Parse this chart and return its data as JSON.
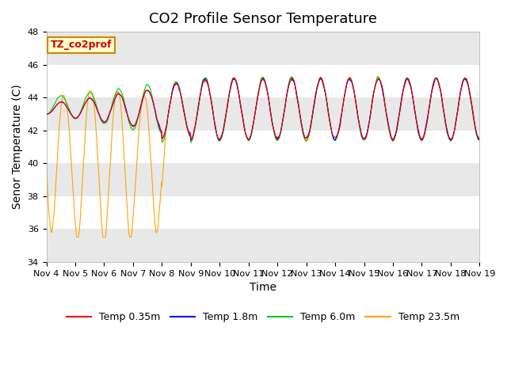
{
  "title": "CO2 Profile Sensor Temperature",
  "xlabel": "Time",
  "ylabel": "Senor Temperature (C)",
  "ylim": [
    34,
    48
  ],
  "yticks": [
    34,
    36,
    38,
    40,
    42,
    44,
    46,
    48
  ],
  "xtick_labels": [
    "Nov 4",
    "Nov 5",
    "Nov 6",
    "Nov 7",
    "Nov 8",
    "Nov 9",
    "Nov 10",
    "Nov 11",
    "Nov 12",
    "Nov 13",
    "Nov 14",
    "Nov 15",
    "Nov 16",
    "Nov 17",
    "Nov 18",
    "Nov 19"
  ],
  "line_colors": {
    "temp035": "#ff0000",
    "temp18": "#0000ff",
    "temp60": "#00cc00",
    "temp235": "#ffa500"
  },
  "legend_labels": [
    "Temp 0.35m",
    "Temp 1.8m",
    "Temp 6.0m",
    "Temp 23.5m"
  ],
  "annotation_text": "TZ_co2prof",
  "annotation_bg": "#ffffcc",
  "annotation_fg": "#cc0000",
  "background_color": "#ffffff",
  "band_color": "#e8e8e8",
  "title_fontsize": 13,
  "label_fontsize": 10,
  "tick_fontsize": 8
}
